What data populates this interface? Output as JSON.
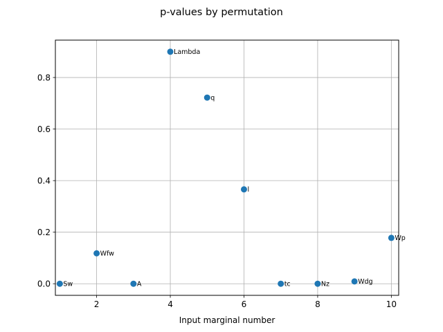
{
  "chart_data": {
    "type": "scatter",
    "title": "p-values by permutation",
    "xlabel": "Input marginal number",
    "ylabel": "",
    "xlim": [
      0.88,
      10.2
    ],
    "ylim": [
      -0.045,
      0.945
    ],
    "grid": true,
    "x_ticks": [
      2,
      4,
      6,
      8,
      10
    ],
    "x_tick_labels": [
      "2",
      "4",
      "6",
      "8",
      "10"
    ],
    "y_ticks": [
      0.0,
      0.2,
      0.4,
      0.6,
      0.8
    ],
    "y_tick_labels": [
      "0.0",
      "0.2",
      "0.4",
      "0.6",
      "0.8"
    ],
    "marker_color": "#1f77b4",
    "points": [
      {
        "x": 1,
        "y": 0.0,
        "label": "Sw"
      },
      {
        "x": 2,
        "y": 0.118,
        "label": "Wfw"
      },
      {
        "x": 3,
        "y": 0.0,
        "label": "A"
      },
      {
        "x": 4,
        "y": 0.9,
        "label": "Lambda"
      },
      {
        "x": 5,
        "y": 0.722,
        "label": "q"
      },
      {
        "x": 6,
        "y": 0.366,
        "label": "l"
      },
      {
        "x": 7,
        "y": 0.0,
        "label": "tc"
      },
      {
        "x": 8,
        "y": 0.0,
        "label": "Nz"
      },
      {
        "x": 9,
        "y": 0.009,
        "label": "Wdg"
      },
      {
        "x": 10,
        "y": 0.178,
        "label": "Wp"
      }
    ]
  }
}
